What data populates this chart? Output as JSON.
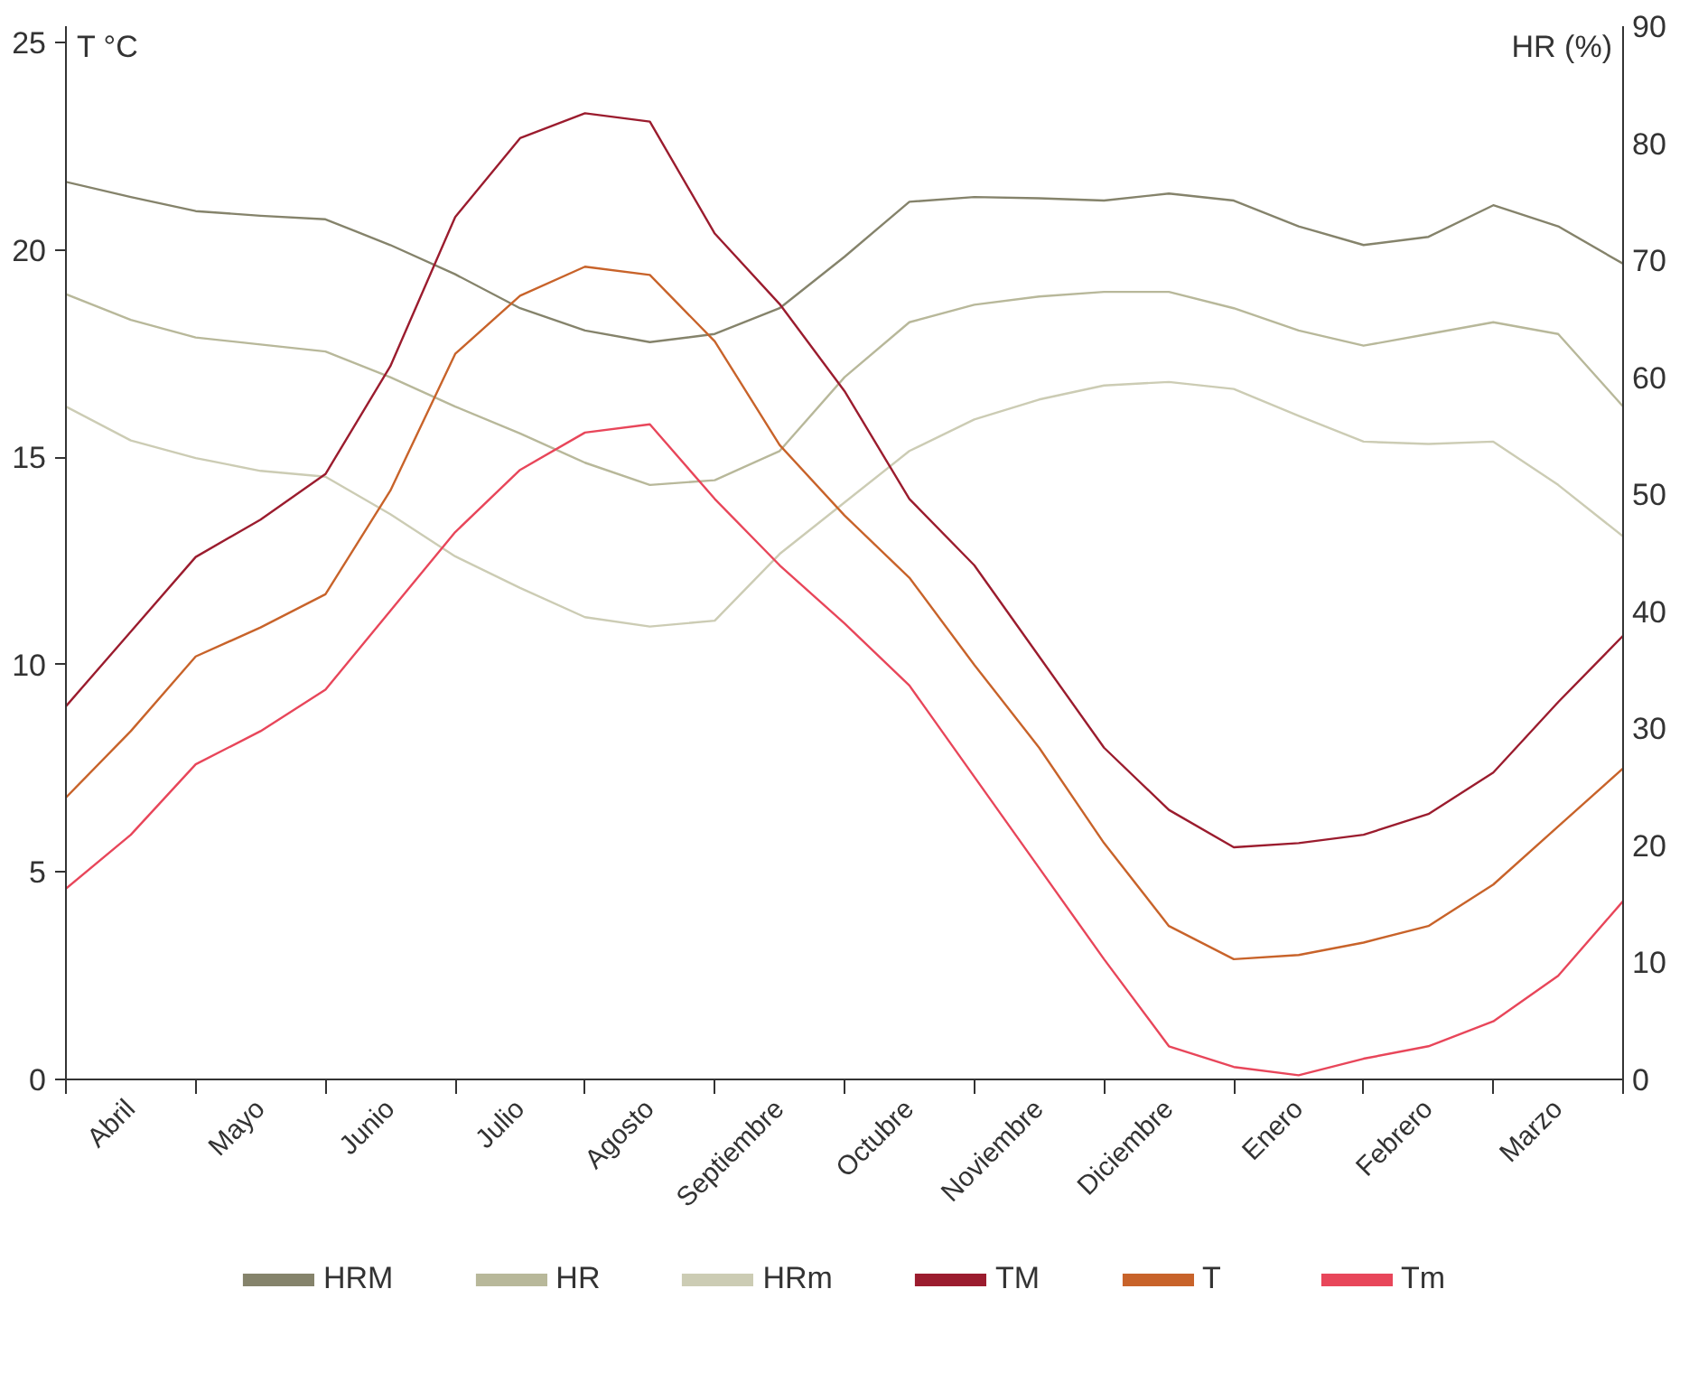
{
  "chart_data": {
    "type": "line",
    "ylabel": "T °C",
    "y2label": "HR (%)",
    "categories": [
      null,
      "Abril",
      null,
      "Mayo",
      null,
      "Junio",
      null,
      "Julio",
      null,
      "Agosto",
      null,
      "Septiembre",
      null,
      "Octubre",
      null,
      "Noviembre",
      null,
      "Diciembre",
      null,
      "Enero",
      null,
      "Febrero",
      null,
      "Marzo",
      null
    ],
    "ylim": [
      0,
      25.4
    ],
    "yticks": [
      0,
      5,
      10,
      15,
      20,
      25
    ],
    "y2lim": [
      0,
      90
    ],
    "y2ticks": [
      0,
      10,
      20,
      30,
      40,
      50,
      60,
      70,
      80,
      90
    ],
    "grid": false,
    "legend": "bottom",
    "marker": "none",
    "line_style": "solid",
    "series": [
      {
        "name": "HRM",
        "color": "#85836b",
        "axis": "y2",
        "values": [
          76.7,
          75.4,
          74.2,
          73.8,
          73.5,
          71.3,
          68.8,
          65.9,
          64.0,
          63.0,
          63.7,
          65.9,
          70.3,
          75.0,
          75.4,
          75.3,
          75.1,
          75.7,
          75.1,
          72.9,
          71.3,
          72.0,
          74.7,
          72.9,
          69.7
        ]
      },
      {
        "name": "HR",
        "color": "#b8b89a",
        "axis": "y2",
        "values": [
          67.1,
          64.9,
          63.4,
          62.8,
          62.2,
          60.0,
          57.5,
          55.2,
          52.7,
          50.8,
          51.2,
          53.7,
          60.0,
          64.7,
          66.2,
          66.9,
          67.3,
          67.3,
          65.9,
          64.0,
          62.7,
          63.7,
          64.7,
          63.7,
          57.5
        ]
      },
      {
        "name": "HRm",
        "color": "#ccccb4",
        "axis": "y2",
        "values": [
          57.5,
          54.6,
          53.1,
          52.0,
          51.5,
          48.3,
          44.7,
          42.0,
          39.5,
          38.7,
          39.2,
          44.9,
          49.3,
          53.7,
          56.4,
          58.1,
          59.3,
          59.6,
          59.0,
          56.7,
          54.5,
          54.3,
          54.5,
          50.8,
          46.4
        ]
      },
      {
        "name": "TM",
        "color": "#9b1c2e",
        "values": [
          9.0,
          10.8,
          12.6,
          13.5,
          14.6,
          17.2,
          20.8,
          22.7,
          23.3,
          23.1,
          20.4,
          18.7,
          16.6,
          14.0,
          12.4,
          10.2,
          8.0,
          6.5,
          5.6,
          5.7,
          5.9,
          6.4,
          7.4,
          9.1,
          10.7
        ]
      },
      {
        "name": "T",
        "color": "#c8632a",
        "values": [
          6.8,
          8.4,
          10.2,
          10.9,
          11.7,
          14.2,
          17.5,
          18.9,
          19.6,
          19.4,
          17.8,
          15.3,
          13.6,
          12.1,
          10.0,
          8.0,
          5.7,
          3.7,
          2.9,
          3.0,
          3.3,
          3.7,
          4.7,
          6.1,
          7.5
        ]
      },
      {
        "name": "Tm",
        "color": "#e8465a",
        "values": [
          4.6,
          5.9,
          7.6,
          8.4,
          9.4,
          11.3,
          13.2,
          14.7,
          15.6,
          15.8,
          14.0,
          12.4,
          11.0,
          9.5,
          7.3,
          5.1,
          2.9,
          0.8,
          0.3,
          0.1,
          0.5,
          0.8,
          1.4,
          2.5,
          4.3
        ]
      }
    ]
  }
}
